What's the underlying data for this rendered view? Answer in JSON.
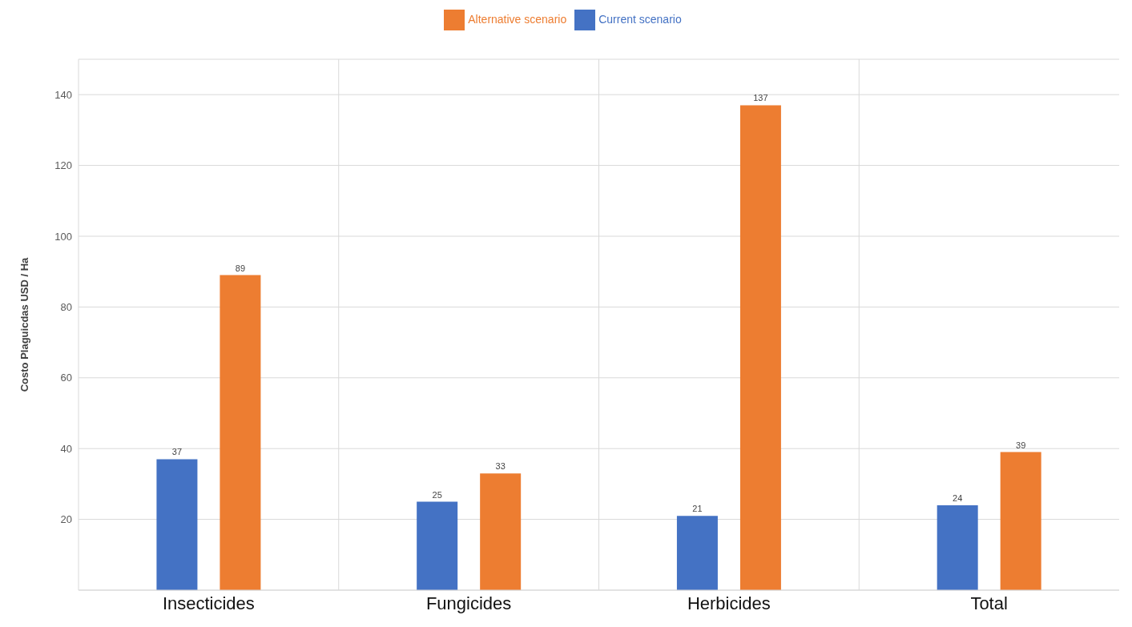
{
  "chart_data": {
    "type": "bar",
    "ylabel": "Costo Plaguicdas USD / Ha",
    "categories": [
      "Insecticides",
      "Fungicides",
      "Herbicides",
      "Total"
    ],
    "series": [
      {
        "name": "Current scenario",
        "color": "#4472c4",
        "values": [
          37,
          25,
          21,
          24
        ]
      },
      {
        "name": "Alternative scenario",
        "color": "#ed7d31",
        "values": [
          89,
          33,
          137,
          39
        ]
      }
    ],
    "ylim": [
      0,
      150
    ],
    "yticks": [
      20,
      40,
      60,
      80,
      100,
      120,
      140
    ],
    "grid": true,
    "legend": "top",
    "data_labels": true
  }
}
